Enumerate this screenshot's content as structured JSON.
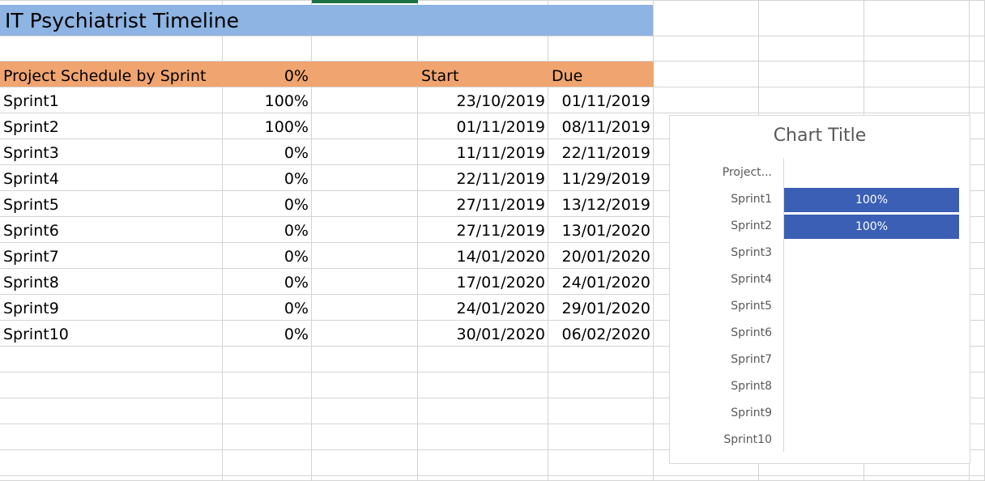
{
  "sheet": {
    "title": "IT Psychiatrist Timeline",
    "header": {
      "label": "Project Schedule by Sprint",
      "percent": "0%",
      "start": "Start",
      "due": "Due"
    },
    "rows": [
      {
        "name": "Sprint1",
        "percent": "100%",
        "start": "23/10/2019",
        "due": "01/11/2019"
      },
      {
        "name": "Sprint2",
        "percent": "100%",
        "start": "01/11/2019",
        "due": "08/11/2019"
      },
      {
        "name": "Sprint3",
        "percent": "0%",
        "start": "11/11/2019",
        "due": "22/11/2019"
      },
      {
        "name": "Sprint4",
        "percent": "0%",
        "start": "22/11/2019",
        "due": "11/29/2019"
      },
      {
        "name": "Sprint5",
        "percent": "0%",
        "start": "27/11/2019",
        "due": "13/12/2019"
      },
      {
        "name": "Sprint6",
        "percent": "0%",
        "start": "27/11/2019",
        "due": "13/01/2020"
      },
      {
        "name": "Sprint7",
        "percent": "0%",
        "start": "14/01/2020",
        "due": "20/01/2020"
      },
      {
        "name": "Sprint8",
        "percent": "0%",
        "start": "17/01/2020",
        "due": "24/01/2020"
      },
      {
        "name": "Sprint9",
        "percent": "0%",
        "start": "24/01/2020",
        "due": "29/01/2020"
      },
      {
        "name": "Sprint10",
        "percent": "0%",
        "start": "30/01/2020",
        "due": "06/02/2020"
      }
    ]
  },
  "colors": {
    "title_fill": "#8db4e2",
    "header_fill": "#f0a470",
    "bar_fill": "#3a5fb5",
    "selection_green": "#1e7145",
    "gridline": "#d4d4d4"
  },
  "chart_data": {
    "type": "bar",
    "orientation": "horizontal",
    "title": "Chart Title",
    "categories": [
      "Project...",
      "Sprint1",
      "Sprint2",
      "Sprint3",
      "Sprint4",
      "Sprint5",
      "Sprint6",
      "Sprint7",
      "Sprint8",
      "Sprint9",
      "Sprint10"
    ],
    "values": [
      0,
      1,
      1,
      0,
      0,
      0,
      0,
      0,
      0,
      0,
      0
    ],
    "data_labels": [
      "",
      "100%",
      "100%",
      "",
      "",
      "",
      "",
      "",
      "",
      "",
      ""
    ],
    "xlim": [
      0,
      1
    ],
    "grid": false,
    "bar_color": "#3a5fb5"
  }
}
